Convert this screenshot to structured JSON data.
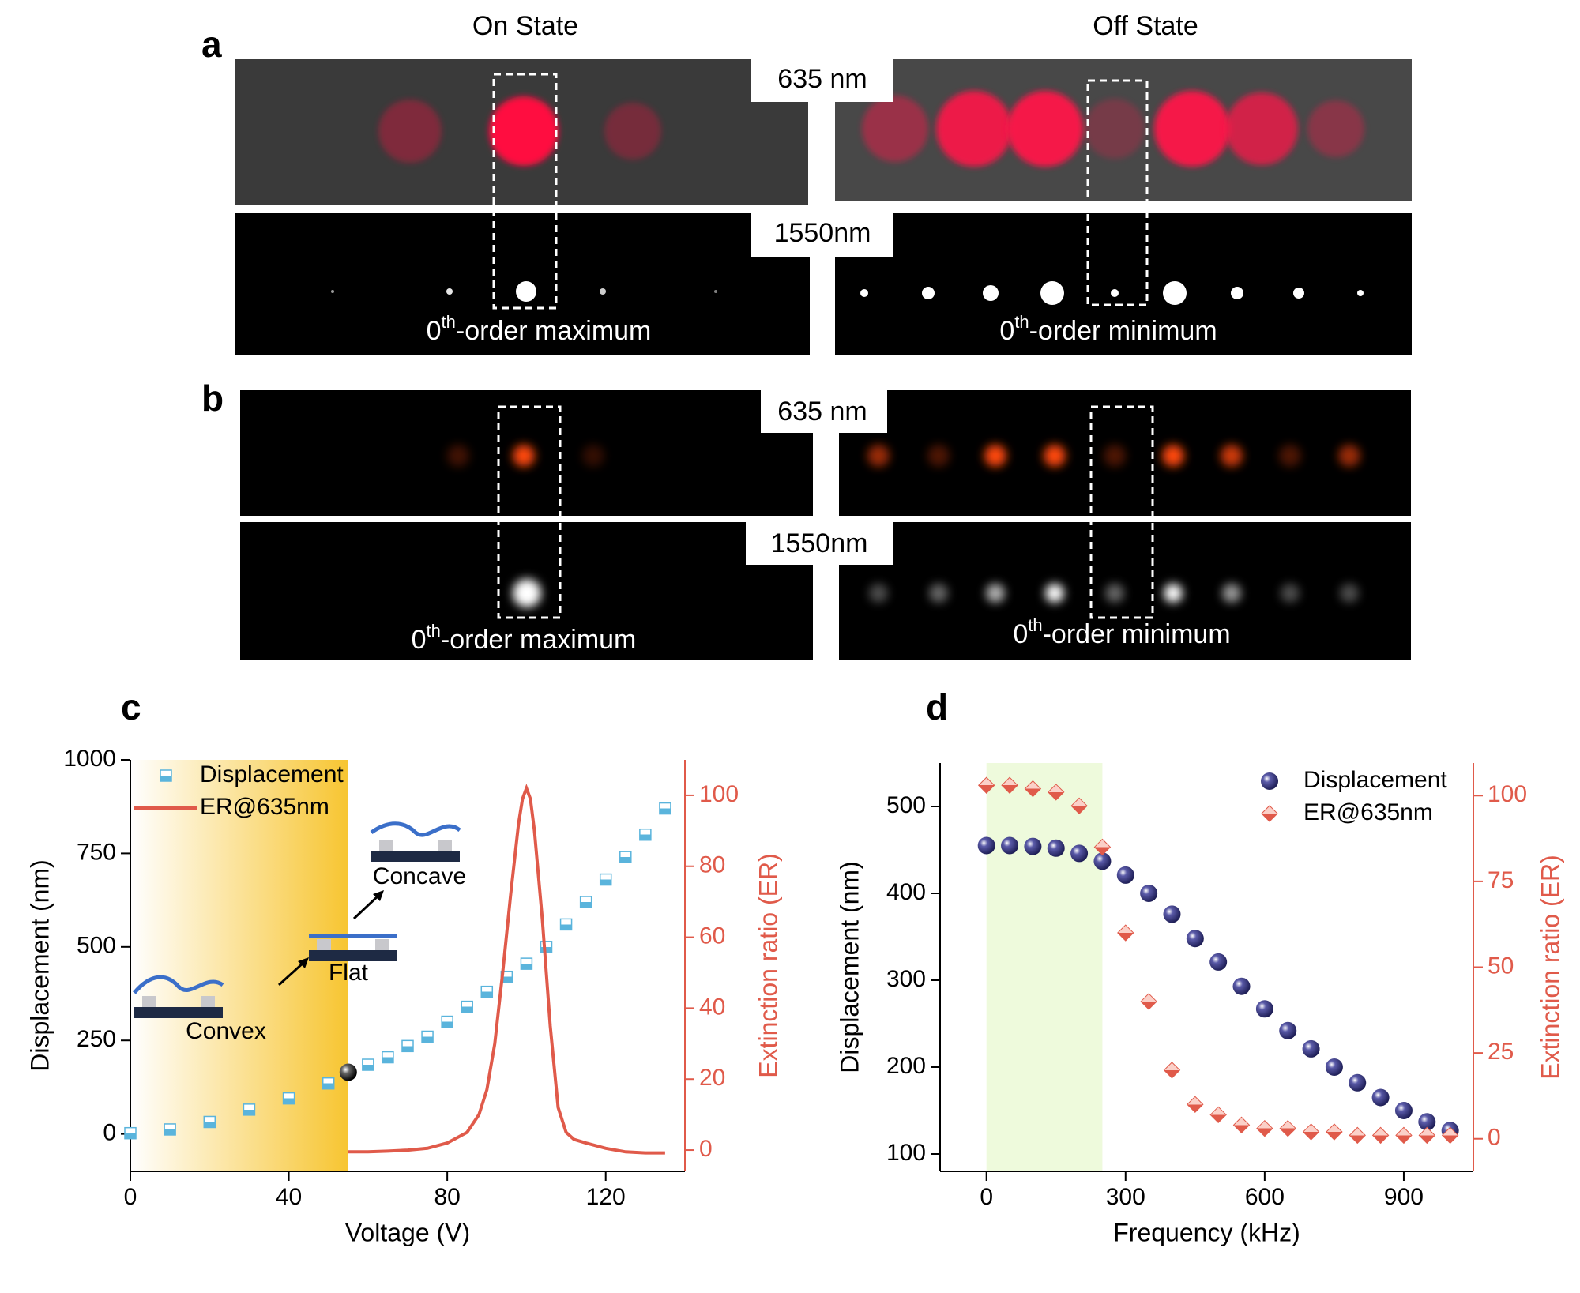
{
  "panel_a": {
    "label": "a",
    "col_titles": [
      "On State",
      "Off State"
    ],
    "wavelengths": [
      "635 nm",
      "1550nm"
    ],
    "captions": [
      {
        "order": "0",
        "sup": "th",
        "rest": "-order maximum"
      },
      {
        "order": "0",
        "sup": "th",
        "rest": "-order minimum"
      }
    ]
  },
  "panel_b": {
    "label": "b",
    "wavelengths": [
      "635 nm",
      "1550nm"
    ],
    "captions": [
      {
        "order": "0",
        "sup": "th",
        "rest": "-order maximum"
      },
      {
        "order": "0",
        "sup": "th",
        "rest": "-order minimum"
      }
    ]
  },
  "chart_data": [
    {
      "type": "scatter",
      "label": "c",
      "xlabel": "Voltage (V)",
      "ylabel": "Displacement (nm)",
      "y2label": "Extinction ratio (ER)",
      "xlim": [
        0,
        140
      ],
      "xticks": [
        0,
        40,
        80,
        120
      ],
      "ylim": [
        -100,
        1000
      ],
      "yticks": [
        0,
        250,
        500,
        750,
        1000
      ],
      "y2lim": [
        -6,
        110
      ],
      "y2ticks": [
        0,
        20,
        40,
        60,
        80,
        100
      ],
      "legend": "upper left",
      "shaded_region": {
        "xlim": [
          0,
          55
        ],
        "color": "#f7c531",
        "gradient": true
      },
      "series": [
        {
          "name": "Displacement",
          "color": "#5ab4dc",
          "marker": "square",
          "x": [
            0,
            10,
            20,
            30,
            40,
            50,
            60,
            65,
            70,
            75,
            80,
            85,
            90,
            95,
            100,
            105,
            110,
            115,
            120,
            125,
            130,
            135
          ],
          "values": [
            2,
            12,
            32,
            65,
            95,
            135,
            185,
            205,
            235,
            260,
            300,
            340,
            380,
            420,
            455,
            500,
            560,
            620,
            680,
            740,
            800,
            870
          ]
        },
        {
          "name": "ER@635nm",
          "color": "#e05a4a",
          "marker": "line",
          "axis": "y2",
          "x": [
            55,
            60,
            65,
            70,
            75,
            80,
            85,
            88,
            90,
            92,
            94,
            96,
            98,
            99,
            100,
            101,
            102,
            104,
            106,
            108,
            110,
            112,
            115,
            120,
            125,
            130,
            135
          ],
          "values": [
            -0.5,
            -0.5,
            -0.3,
            0,
            0.5,
            2,
            5,
            10,
            17,
            30,
            50,
            72,
            92,
            99,
            102,
            99,
            90,
            65,
            35,
            12,
            5,
            3,
            2,
            0.5,
            -0.5,
            -0.8,
            -0.8
          ]
        }
      ],
      "highlight_point": {
        "x": 55,
        "y": 165,
        "color": "#000000"
      },
      "annotations": [
        "Convex",
        "Flat",
        "Concave"
      ]
    },
    {
      "type": "scatter",
      "label": "d",
      "xlabel": "Frequency (kHz)",
      "ylabel": "Displacement (nm)",
      "y2label": "Extinction ratio (ER)",
      "xlim": [
        -100,
        1050
      ],
      "xticks": [
        0,
        300,
        600,
        900
      ],
      "ylim": [
        80,
        550
      ],
      "yticks": [
        100,
        200,
        300,
        400,
        500
      ],
      "y2lim": [
        -9.5,
        109.5
      ],
      "y2ticks": [
        0,
        25,
        50,
        75,
        100
      ],
      "legend": "upper right",
      "shaded_region": {
        "xlim": [
          0,
          250
        ],
        "color": "#eefadc",
        "gradient": false
      },
      "series": [
        {
          "name": "Displacement",
          "color": "#5a5aa8",
          "marker": "sphere",
          "x": [
            0,
            50,
            100,
            150,
            200,
            250,
            300,
            350,
            400,
            450,
            500,
            550,
            600,
            650,
            700,
            750,
            800,
            850,
            900,
            950,
            1000
          ],
          "values": [
            455,
            455,
            454,
            452,
            446,
            437,
            421,
            400,
            376,
            348,
            321,
            293,
            267,
            242,
            221,
            200,
            182,
            165,
            150,
            137,
            127
          ]
        },
        {
          "name": "ER@635nm",
          "color": "#e05a4a",
          "marker": "diamond",
          "axis": "y2",
          "x": [
            0,
            50,
            100,
            150,
            200,
            250,
            300,
            350,
            400,
            450,
            500,
            550,
            600,
            650,
            700,
            750,
            800,
            850,
            900,
            950,
            1000
          ],
          "values": [
            103,
            103,
            102,
            101,
            97,
            85,
            60,
            40,
            20,
            10,
            7,
            4,
            3,
            3,
            2,
            2,
            1,
            1,
            1,
            1,
            1
          ]
        }
      ]
    }
  ]
}
